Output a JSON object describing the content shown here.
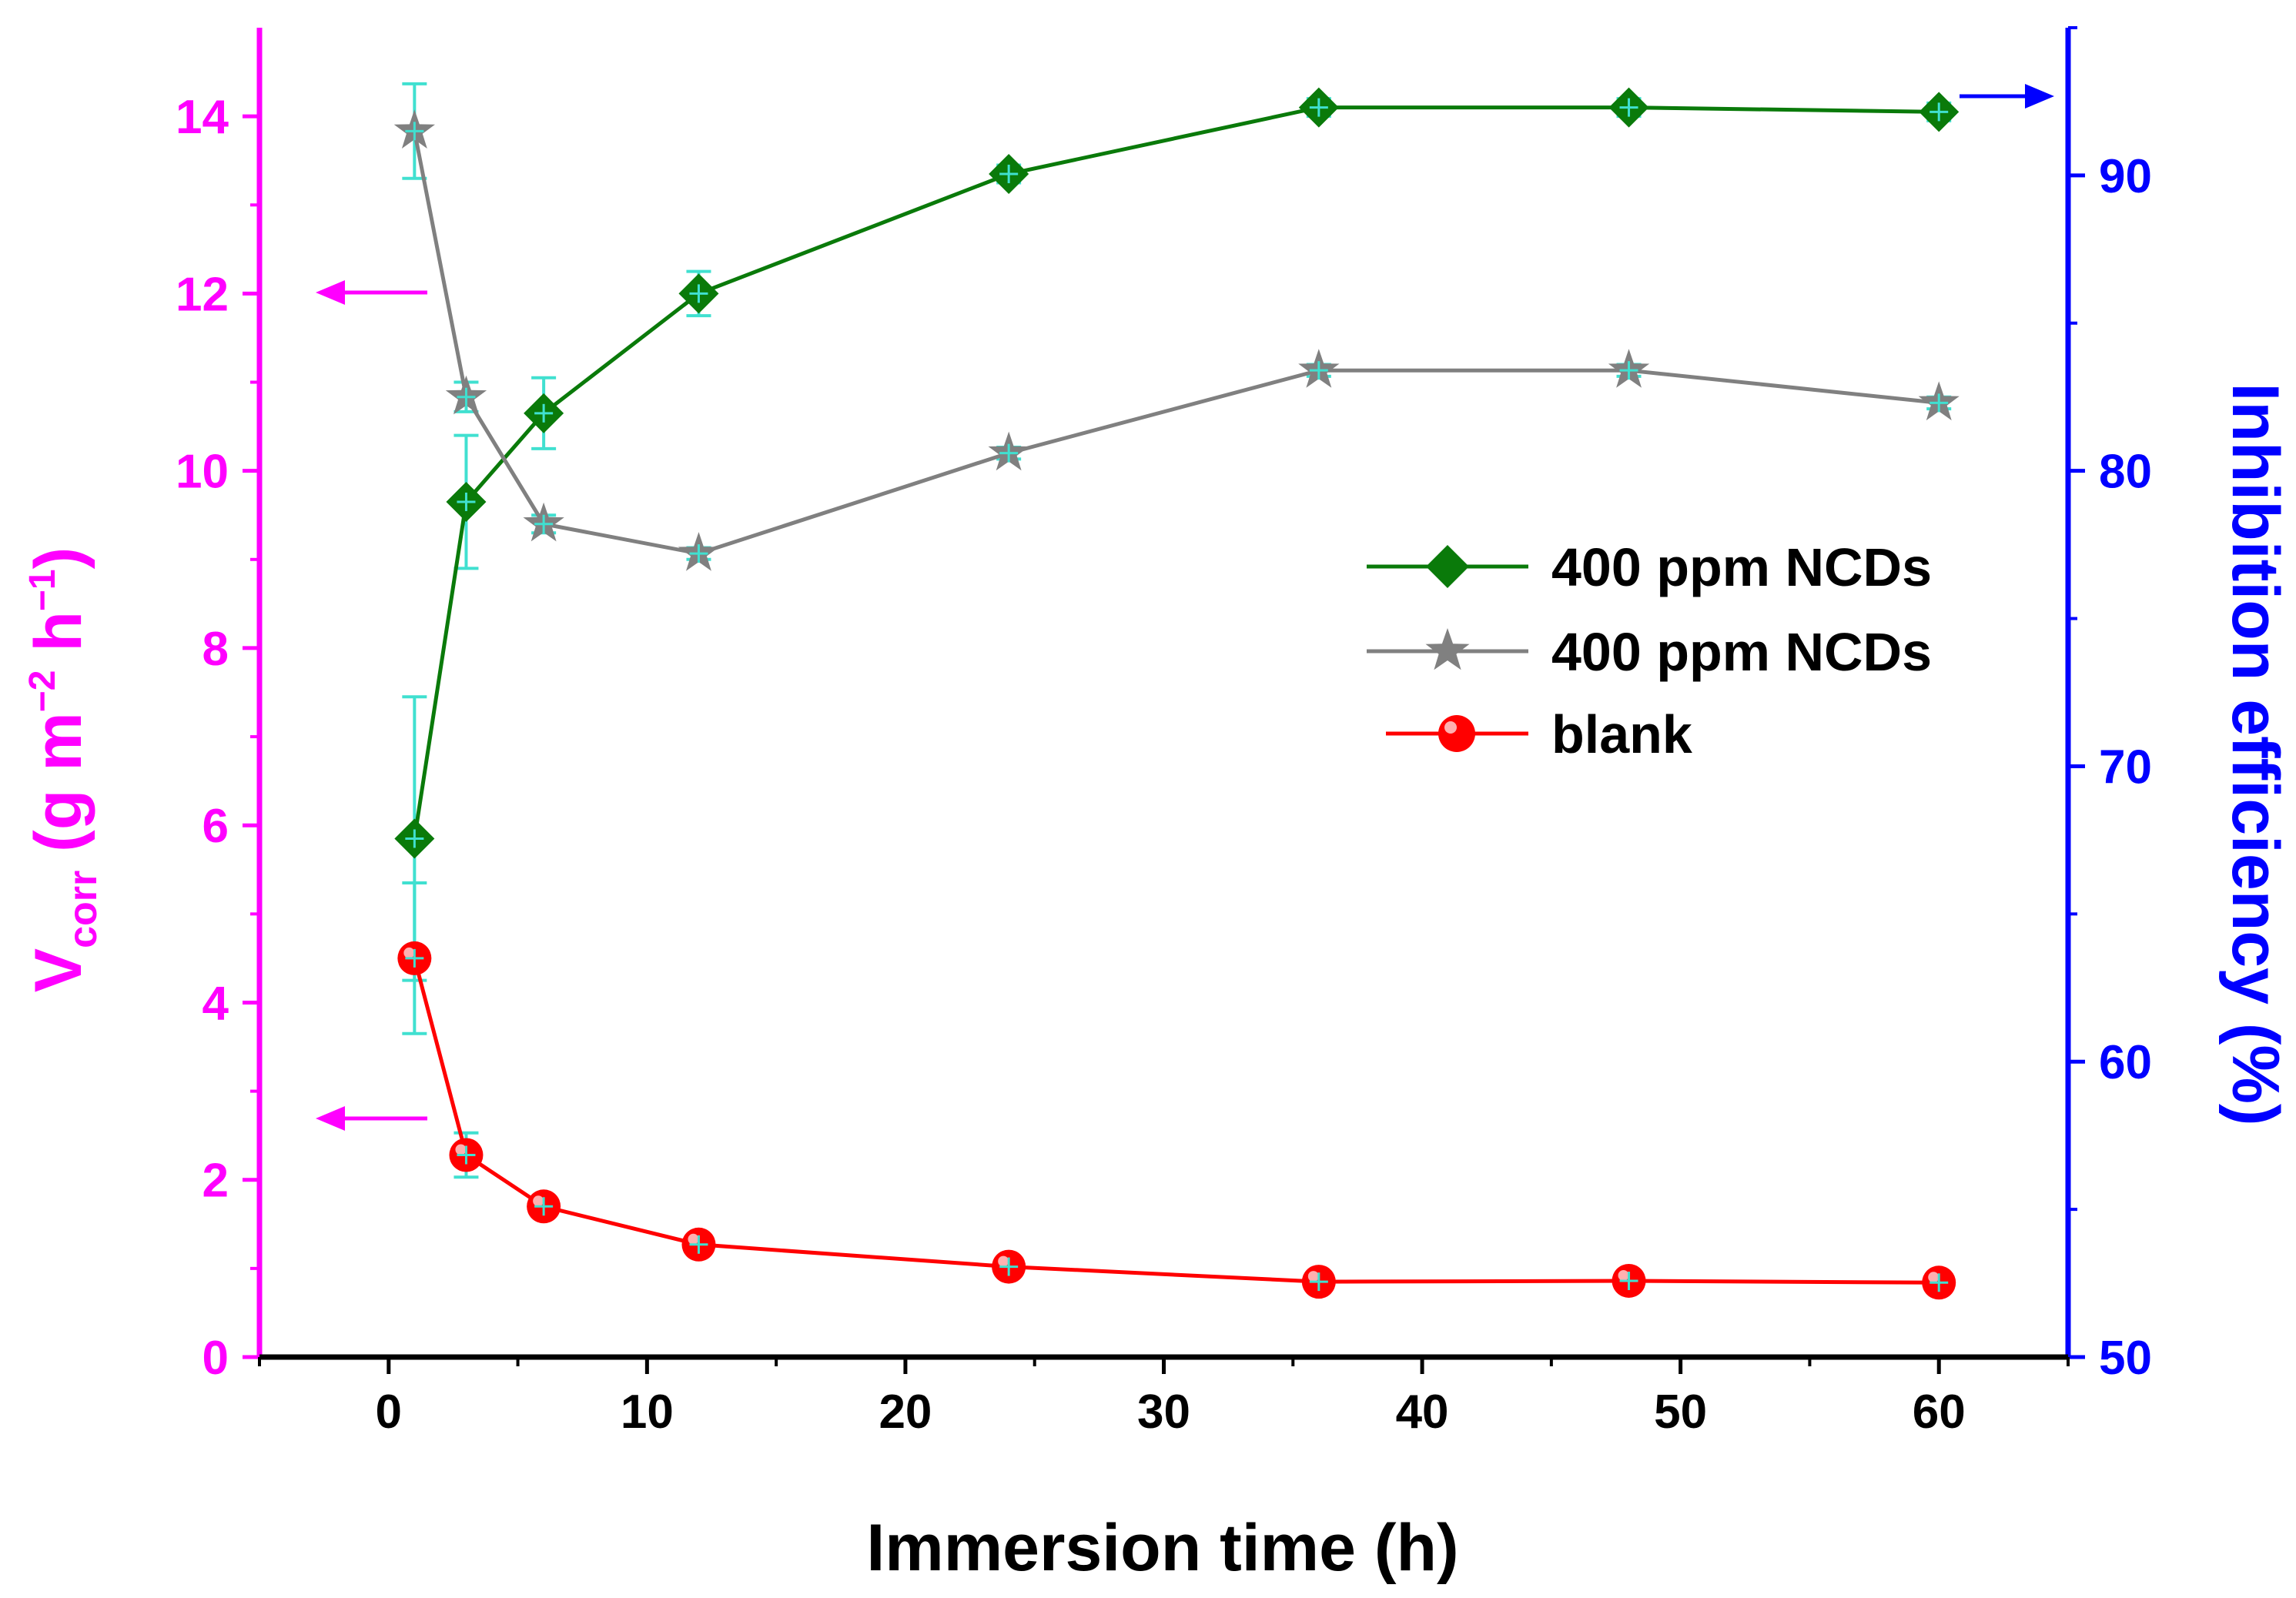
{
  "chart_data": {
    "type": "line",
    "xlabel": "Immersion time (h)",
    "ylabel_left": {
      "main": "V",
      "sub": "corr",
      "unit_open": " (g m",
      "unit_exp1": "−2",
      "unit_mid": " h",
      "unit_exp2": "−1",
      "unit_close": ")"
    },
    "ylabel_right": "Inhibition efficiency (%)",
    "xlim": [
      -5,
      65
    ],
    "ylim_left": [
      0,
      15
    ],
    "ylim_right": [
      50,
      95
    ],
    "x_ticks": [
      "0",
      "10",
      "20",
      "30",
      "40",
      "50",
      "60"
    ],
    "y_left_ticks": [
      "0",
      "2",
      "4",
      "6",
      "8",
      "10",
      "12",
      "14"
    ],
    "y_right_ticks": [
      "50",
      "60",
      "70",
      "80",
      "90"
    ],
    "x": [
      1,
      3,
      6,
      12,
      24,
      36,
      48,
      60
    ],
    "series": [
      {
        "name": "400 ppm NCDs",
        "axis": "left",
        "marker": "diamond",
        "color": "#0a7a0a",
        "values": [
          5.85,
          9.65,
          10.65,
          12.0,
          13.35,
          14.1,
          14.1,
          14.05
        ],
        "errors": [
          1.6,
          0.75,
          0.4,
          0.25,
          0.1,
          0.1,
          0.1,
          0.1
        ]
      },
      {
        "name": "400 ppm NCDs",
        "axis": "right",
        "marker": "star",
        "color": "#808080",
        "values": [
          91.5,
          82.5,
          78.2,
          77.2,
          80.6,
          83.4,
          83.4,
          82.3
        ],
        "errors": [
          1.6,
          0.5,
          0.3,
          0.2,
          0.2,
          0.2,
          0.2,
          0.2
        ]
      },
      {
        "name": "blank",
        "axis": "left",
        "marker": "circle",
        "color": "#ff0000",
        "values": [
          4.5,
          2.28,
          1.7,
          1.27,
          1.02,
          0.85,
          0.86,
          0.84
        ],
        "errors": [
          0.85,
          0.25,
          0.1,
          0.08,
          0.05,
          0.05,
          0.05,
          0.05
        ]
      }
    ],
    "colors": {
      "left_axis": "#ff00ff",
      "right_axis": "#0000ff",
      "bottom_axis": "#000000",
      "errorbar": "#40e0d0"
    }
  }
}
